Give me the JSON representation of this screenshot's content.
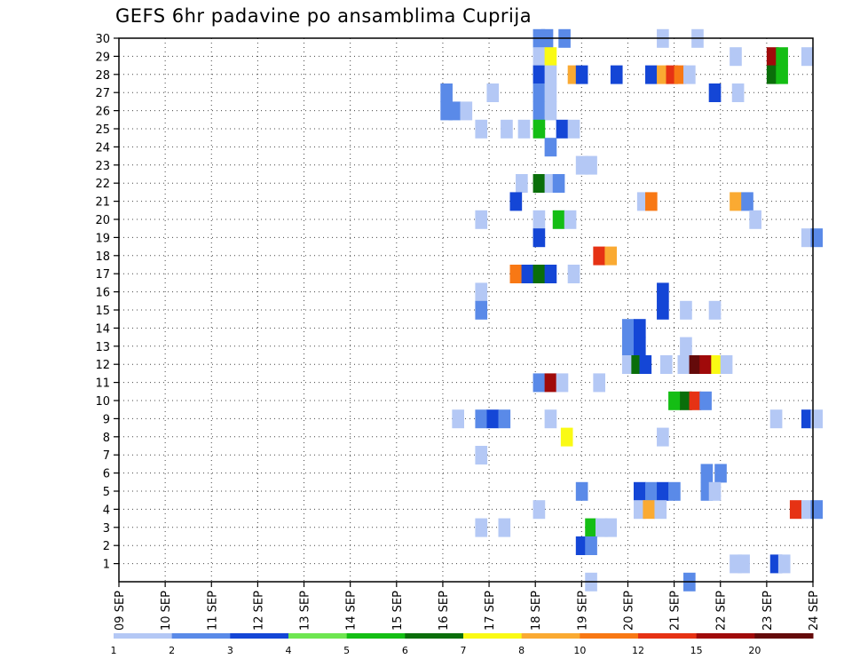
{
  "chart_data": {
    "type": "heatmap",
    "title": "GEFS 6hr padavine po ansamblima Cuprija",
    "xlabel": "",
    "ylabel": "",
    "x_tick_labels": [
      "09 SEP",
      "10 SEP",
      "11 SEP",
      "12 SEP",
      "13 SEP",
      "14 SEP",
      "15 SEP",
      "16 SEP",
      "17 SEP",
      "18 SEP",
      "19 SEP",
      "20 SEP",
      "21 SEP",
      "22 SEP",
      "23 SEP",
      "24 SEP"
    ],
    "y_tick_labels": [
      "1",
      "2",
      "3",
      "4",
      "5",
      "6",
      "7",
      "8",
      "9",
      "10",
      "11",
      "12",
      "13",
      "14",
      "15",
      "16",
      "17",
      "18",
      "19",
      "20",
      "21",
      "22",
      "23",
      "24",
      "25",
      "26",
      "27",
      "28",
      "29",
      "30"
    ],
    "x_unit": "6-hour step (0 = 09 SEP 00z, 4 steps per day)",
    "x_range": [
      0,
      60
    ],
    "y_range": [
      0,
      30
    ],
    "grid": true,
    "colorbar": {
      "labels": [
        "1",
        "2",
        "3",
        "4",
        "5",
        "6",
        "7",
        "8",
        "10",
        "12",
        "15",
        "20"
      ],
      "colors": [
        "#b4c8f5",
        "#5a8ae8",
        "#1446d6",
        "#6ee650",
        "#14be14",
        "#0a6e0a",
        "#fafa14",
        "#faaa32",
        "#f87814",
        "#e63214",
        "#a00a0a",
        "#640a0a"
      ]
    },
    "cells": [
      {
        "x": 35.8,
        "y": 30,
        "v": 2
      },
      {
        "x": 36.5,
        "y": 30,
        "v": 2
      },
      {
        "x": 38,
        "y": 30,
        "v": 2
      },
      {
        "x": 46.5,
        "y": 30,
        "v": 1
      },
      {
        "x": 49.5,
        "y": 30,
        "v": 1
      },
      {
        "x": 35.8,
        "y": 29,
        "v": 1
      },
      {
        "x": 36.8,
        "y": 29,
        "v": 7
      },
      {
        "x": 52.8,
        "y": 29,
        "v": 1
      },
      {
        "x": 56,
        "y": 29,
        "v": 15
      },
      {
        "x": 56.8,
        "y": 29,
        "v": 5
      },
      {
        "x": 59,
        "y": 29,
        "v": 1
      },
      {
        "x": 35.8,
        "y": 28,
        "v": 3
      },
      {
        "x": 36.8,
        "y": 28,
        "v": 1
      },
      {
        "x": 38.8,
        "y": 28,
        "v": 8
      },
      {
        "x": 39.5,
        "y": 28,
        "v": 3
      },
      {
        "x": 42.5,
        "y": 28,
        "v": 3
      },
      {
        "x": 45.5,
        "y": 28,
        "v": 3
      },
      {
        "x": 46.5,
        "y": 28,
        "v": 8
      },
      {
        "x": 47.3,
        "y": 28,
        "v": 12
      },
      {
        "x": 48,
        "y": 28,
        "v": 10
      },
      {
        "x": 48.8,
        "y": 28,
        "v": 1
      },
      {
        "x": 56,
        "y": 28,
        "v": 6
      },
      {
        "x": 56.8,
        "y": 28,
        "v": 5
      },
      {
        "x": 27.8,
        "y": 27,
        "v": 2
      },
      {
        "x": 31.8,
        "y": 27,
        "v": 1
      },
      {
        "x": 35.8,
        "y": 27,
        "v": 2
      },
      {
        "x": 36.8,
        "y": 27,
        "v": 1
      },
      {
        "x": 51,
        "y": 27,
        "v": 3
      },
      {
        "x": 53,
        "y": 27,
        "v": 1
      },
      {
        "x": 27.8,
        "y": 26,
        "v": 2
      },
      {
        "x": 28.5,
        "y": 26,
        "v": 2
      },
      {
        "x": 29.5,
        "y": 26,
        "v": 1
      },
      {
        "x": 35.8,
        "y": 26,
        "v": 2
      },
      {
        "x": 36.8,
        "y": 26,
        "v": 1
      },
      {
        "x": 30.8,
        "y": 25,
        "v": 1
      },
      {
        "x": 33,
        "y": 25,
        "v": 1
      },
      {
        "x": 34.5,
        "y": 25,
        "v": 1
      },
      {
        "x": 35.8,
        "y": 25,
        "v": 5
      },
      {
        "x": 37.8,
        "y": 25,
        "v": 3
      },
      {
        "x": 38.8,
        "y": 25,
        "v": 1
      },
      {
        "x": 36.8,
        "y": 24,
        "v": 2
      },
      {
        "x": 39.5,
        "y": 23,
        "v": 1
      },
      {
        "x": 40.3,
        "y": 23,
        "v": 1
      },
      {
        "x": 34.3,
        "y": 22,
        "v": 1
      },
      {
        "x": 35.8,
        "y": 22,
        "v": 6
      },
      {
        "x": 36.8,
        "y": 22,
        "v": 1
      },
      {
        "x": 37.5,
        "y": 22,
        "v": 2
      },
      {
        "x": 33.8,
        "y": 21,
        "v": 3
      },
      {
        "x": 44.8,
        "y": 21,
        "v": 1
      },
      {
        "x": 45.5,
        "y": 21,
        "v": 10
      },
      {
        "x": 52.8,
        "y": 21,
        "v": 8
      },
      {
        "x": 53.8,
        "y": 21,
        "v": 2
      },
      {
        "x": 30.8,
        "y": 20,
        "v": 1
      },
      {
        "x": 35.8,
        "y": 20,
        "v": 1
      },
      {
        "x": 37.5,
        "y": 20,
        "v": 5
      },
      {
        "x": 38.5,
        "y": 20,
        "v": 1
      },
      {
        "x": 54.5,
        "y": 20,
        "v": 1
      },
      {
        "x": 35.8,
        "y": 19,
        "v": 3
      },
      {
        "x": 59,
        "y": 19,
        "v": 1
      },
      {
        "x": 59.8,
        "y": 19,
        "v": 2
      },
      {
        "x": 41,
        "y": 18,
        "v": 12
      },
      {
        "x": 42,
        "y": 18,
        "v": 8
      },
      {
        "x": 33.8,
        "y": 17,
        "v": 10
      },
      {
        "x": 34.8,
        "y": 17,
        "v": 3
      },
      {
        "x": 35.8,
        "y": 17,
        "v": 6
      },
      {
        "x": 36.8,
        "y": 17,
        "v": 3
      },
      {
        "x": 38.8,
        "y": 17,
        "v": 1
      },
      {
        "x": 30.8,
        "y": 16,
        "v": 1
      },
      {
        "x": 46.5,
        "y": 16,
        "v": 3
      },
      {
        "x": 30.8,
        "y": 15,
        "v": 2
      },
      {
        "x": 46.5,
        "y": 15,
        "v": 3
      },
      {
        "x": 48.5,
        "y": 15,
        "v": 1
      },
      {
        "x": 51,
        "y": 15,
        "v": 1
      },
      {
        "x": 43.5,
        "y": 14,
        "v": 2
      },
      {
        "x": 44.5,
        "y": 14,
        "v": 3
      },
      {
        "x": 43.5,
        "y": 13,
        "v": 2
      },
      {
        "x": 44.5,
        "y": 13,
        "v": 3
      },
      {
        "x": 48.5,
        "y": 13,
        "v": 1
      },
      {
        "x": 43.5,
        "y": 12,
        "v": 1
      },
      {
        "x": 44.3,
        "y": 12,
        "v": 6
      },
      {
        "x": 45,
        "y": 12,
        "v": 3
      },
      {
        "x": 46.8,
        "y": 12,
        "v": 1
      },
      {
        "x": 48.3,
        "y": 12,
        "v": 1
      },
      {
        "x": 49.3,
        "y": 12,
        "v": 20
      },
      {
        "x": 50.2,
        "y": 12,
        "v": 15
      },
      {
        "x": 51.2,
        "y": 12,
        "v": 7
      },
      {
        "x": 52,
        "y": 12,
        "v": 1
      },
      {
        "x": 35.8,
        "y": 11,
        "v": 2
      },
      {
        "x": 36.8,
        "y": 11,
        "v": 15
      },
      {
        "x": 37.8,
        "y": 11,
        "v": 1
      },
      {
        "x": 41,
        "y": 11,
        "v": 1
      },
      {
        "x": 47.5,
        "y": 10,
        "v": 5
      },
      {
        "x": 48.5,
        "y": 10,
        "v": 6
      },
      {
        "x": 49.3,
        "y": 10,
        "v": 12
      },
      {
        "x": 50.2,
        "y": 10,
        "v": 2
      },
      {
        "x": 28.8,
        "y": 9,
        "v": 1
      },
      {
        "x": 30.8,
        "y": 9,
        "v": 2
      },
      {
        "x": 31.8,
        "y": 9,
        "v": 3
      },
      {
        "x": 32.8,
        "y": 9,
        "v": 2
      },
      {
        "x": 36.8,
        "y": 9,
        "v": 1
      },
      {
        "x": 56.3,
        "y": 9,
        "v": 1
      },
      {
        "x": 59,
        "y": 9,
        "v": 3
      },
      {
        "x": 59.8,
        "y": 9,
        "v": 1
      },
      {
        "x": 38.2,
        "y": 8,
        "v": 7
      },
      {
        "x": 46.5,
        "y": 8,
        "v": 1
      },
      {
        "x": 30.8,
        "y": 7,
        "v": 1
      },
      {
        "x": 50.3,
        "y": 6,
        "v": 2
      },
      {
        "x": 51.5,
        "y": 6,
        "v": 2
      },
      {
        "x": 39.5,
        "y": 5,
        "v": 2
      },
      {
        "x": 44.5,
        "y": 5,
        "v": 3
      },
      {
        "x": 45.5,
        "y": 5,
        "v": 2
      },
      {
        "x": 46.5,
        "y": 5,
        "v": 3
      },
      {
        "x": 47.5,
        "y": 5,
        "v": 2
      },
      {
        "x": 50.3,
        "y": 5,
        "v": 2
      },
      {
        "x": 51,
        "y": 5,
        "v": 1
      },
      {
        "x": 35.8,
        "y": 4,
        "v": 1
      },
      {
        "x": 44.5,
        "y": 4,
        "v": 1
      },
      {
        "x": 45.3,
        "y": 4,
        "v": 8
      },
      {
        "x": 46.3,
        "y": 4,
        "v": 1
      },
      {
        "x": 58,
        "y": 4,
        "v": 12
      },
      {
        "x": 59,
        "y": 4,
        "v": 1
      },
      {
        "x": 59.8,
        "y": 4,
        "v": 2
      },
      {
        "x": 30.8,
        "y": 3,
        "v": 1
      },
      {
        "x": 32.8,
        "y": 3,
        "v": 1
      },
      {
        "x": 40.3,
        "y": 3,
        "v": 5
      },
      {
        "x": 41.2,
        "y": 3,
        "v": 1
      },
      {
        "x": 42,
        "y": 3,
        "v": 1
      },
      {
        "x": 39.5,
        "y": 2,
        "v": 3
      },
      {
        "x": 40.3,
        "y": 2,
        "v": 2
      },
      {
        "x": 52.8,
        "y": 1,
        "v": 1
      },
      {
        "x": 53.5,
        "y": 1,
        "v": 1
      },
      {
        "x": 56.3,
        "y": 1,
        "v": 3
      },
      {
        "x": 57,
        "y": 1,
        "v": 1
      },
      {
        "x": 40.3,
        "y": 0,
        "v": 1
      },
      {
        "x": 48.8,
        "y": 0,
        "v": 2
      }
    ]
  }
}
